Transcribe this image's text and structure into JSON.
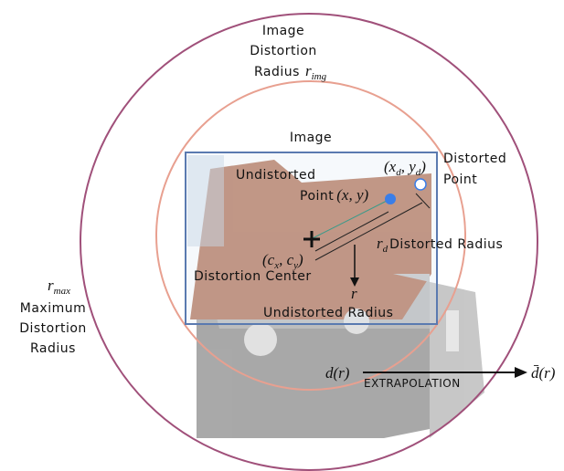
{
  "max_radius": {
    "symbol": "r",
    "symbol_sub": "max",
    "lines": [
      "Maximum",
      "Distortion",
      "Radius"
    ]
  },
  "image_radius": {
    "lines": [
      "Image",
      "Distortion",
      "Radius"
    ],
    "symbol": "r",
    "symbol_sub": "img"
  },
  "image": {
    "label": "Image"
  },
  "undistorted_point": {
    "lines": [
      "Undistorted",
      "Point"
    ],
    "coords": "(x, y)"
  },
  "distorted_point": {
    "lines": [
      "Distorted",
      "Point"
    ],
    "coords": [
      "(x",
      "d",
      ", y",
      "d",
      ")"
    ]
  },
  "distortion_center": {
    "label": "Distortion Center",
    "coords": [
      "(c",
      "x",
      ", c",
      "y",
      ")"
    ]
  },
  "distorted_radius": {
    "symbol": "r",
    "symbol_sub": "d",
    "label": "Distorted Radius"
  },
  "undistorted_radius": {
    "symbol": "r",
    "label": "Undistorted Radius"
  },
  "extrapolation": {
    "from": "d(r)",
    "label": "EXTRAPOLATION",
    "to": "d̄(r)"
  }
}
